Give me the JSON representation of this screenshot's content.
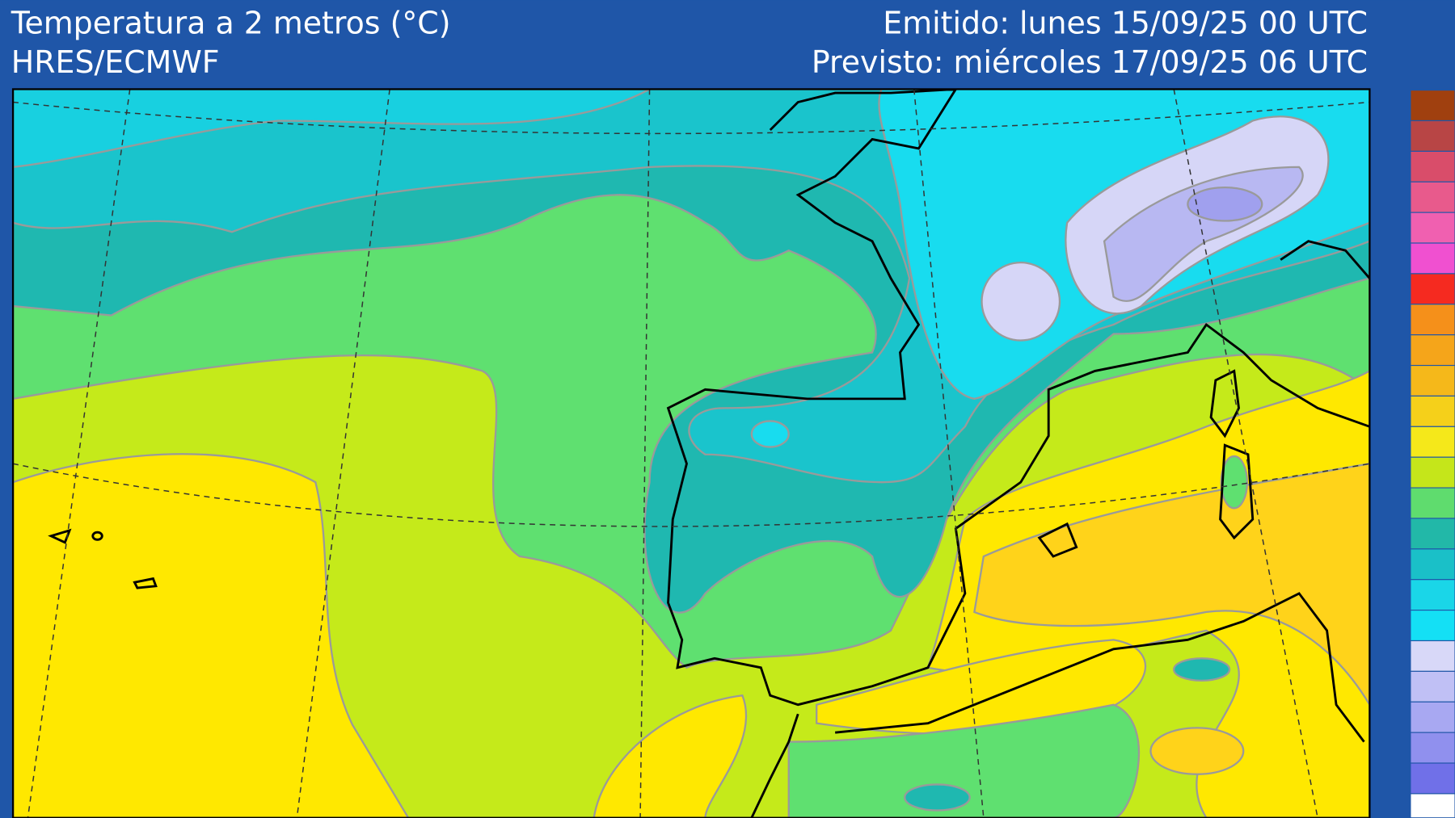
{
  "header": {
    "title": "Temperatura a 2 metros (°C)",
    "model": "HRES/ECMWF",
    "issued": "Emitido: lunes 15/09/25 00 UTC",
    "forecast": "Previsto: miércoles 17/09/25 06 UTC"
  }
}
